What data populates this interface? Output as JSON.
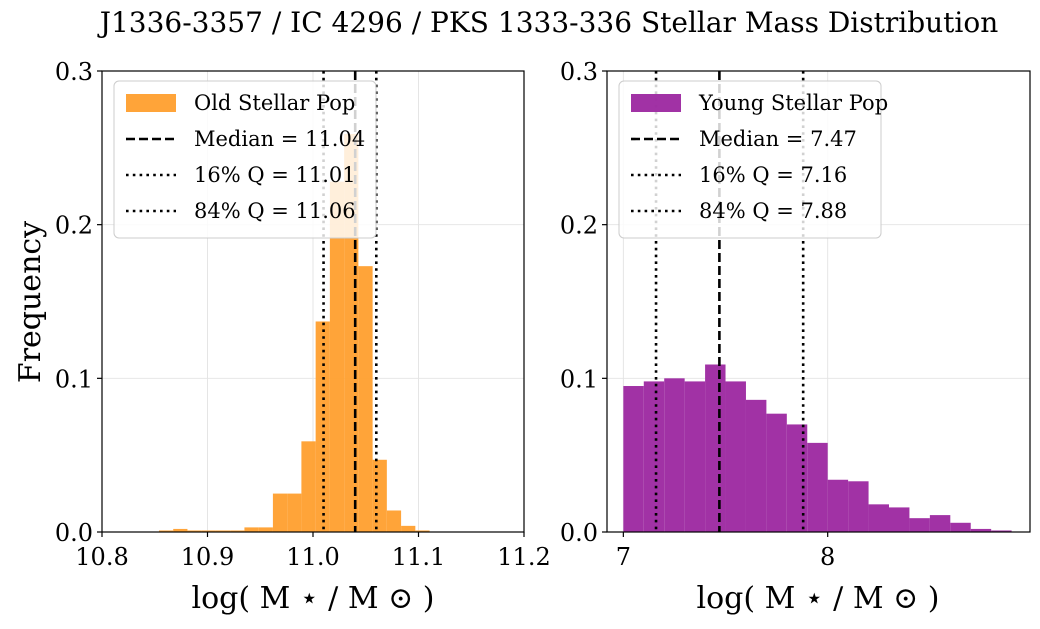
{
  "figure": {
    "title": "J1336-3357 / IC 4296 / PKS 1333-336 Stellar Mass Distribution"
  },
  "chart_data": [
    {
      "type": "bar",
      "subtype": "histogram",
      "xlabel": "log( M ⋆ / M ⊙ )",
      "ylabel": "Frequency",
      "xlim": [
        10.8,
        11.2
      ],
      "ylim": [
        0.0,
        0.3
      ],
      "xticks": [
        10.8,
        10.9,
        11.0,
        11.1,
        11.2
      ],
      "xtick_labels": [
        "10.8",
        "10.9",
        "11.0",
        "11.1",
        "11.2"
      ],
      "yticks": [
        0.0,
        0.1,
        0.2,
        0.3
      ],
      "ytick_labels": [
        "0.0",
        "0.1",
        "0.2",
        "0.3"
      ],
      "grid": true,
      "legend_position": "top-left",
      "series": [
        {
          "name": "Old Stellar Pop",
          "color": "#ff9f2e",
          "bin_edges": [
            10.854,
            10.8675,
            10.881,
            10.8945,
            10.908,
            10.9215,
            10.935,
            10.9485,
            10.962,
            10.9755,
            10.989,
            11.0025,
            11.016,
            11.0295,
            11.043,
            11.0565,
            11.07,
            11.0835,
            11.097,
            11.1105
          ],
          "values": [
            0.001,
            0.002,
            0.001,
            0.001,
            0.001,
            0.001,
            0.003,
            0.003,
            0.025,
            0.025,
            0.059,
            0.137,
            0.228,
            0.259,
            0.173,
            0.047,
            0.014,
            0.004,
            0.001
          ]
        }
      ],
      "lines": [
        {
          "name": "Median = 11.04",
          "x": 11.04,
          "style": "dashed"
        },
        {
          "name": "16% Q = 11.01",
          "x": 11.01,
          "style": "dotted"
        },
        {
          "name": "84% Q = 11.06",
          "x": 11.06,
          "style": "dotted"
        }
      ]
    },
    {
      "type": "bar",
      "subtype": "histogram",
      "xlabel": "log( M ⋆ / M ⊙ )",
      "xlim": [
        6.92,
        8.99
      ],
      "ylim": [
        0.0,
        0.3
      ],
      "xticks": [
        7,
        8
      ],
      "xtick_labels": [
        "7",
        "8"
      ],
      "yticks": [
        0.0,
        0.1,
        0.2,
        0.3
      ],
      "ytick_labels": [
        "0.0",
        "0.1",
        "0.2",
        "0.3"
      ],
      "grid": true,
      "legend_position": "top-left",
      "series": [
        {
          "name": "Young Stellar Pop",
          "color": "#9c27a0",
          "bin_edges": [
            7.0,
            7.1,
            7.2,
            7.3,
            7.4,
            7.5,
            7.6,
            7.7,
            7.8,
            7.9,
            8.0,
            8.1,
            8.2,
            8.3,
            8.4,
            8.5,
            8.6,
            8.7,
            8.8,
            8.9
          ],
          "values": [
            0.095,
            0.098,
            0.1,
            0.098,
            0.109,
            0.098,
            0.086,
            0.077,
            0.07,
            0.058,
            0.034,
            0.033,
            0.018,
            0.016,
            0.009,
            0.011,
            0.006,
            0.002,
            0.001
          ]
        }
      ],
      "lines": [
        {
          "name": "Median = 7.47",
          "x": 7.47,
          "style": "dashed"
        },
        {
          "name": "16% Q = 7.16",
          "x": 7.16,
          "style": "dotted"
        },
        {
          "name": "84% Q = 7.88",
          "x": 7.88,
          "style": "dotted"
        }
      ]
    }
  ]
}
